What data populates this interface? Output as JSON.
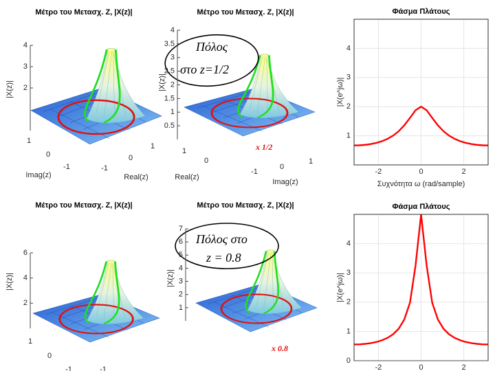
{
  "chart_data": [
    {
      "type": "surface3d",
      "title": "Μέτρο του Μετασχ. Z, |X(z)|",
      "zlabel": "|X(z)|",
      "xlabel": "Real(z)",
      "ylabel": "Imag(z)",
      "xticks": [
        -1,
        0,
        1
      ],
      "yticks": [
        1,
        0,
        -1
      ],
      "zlim": [
        0,
        4
      ],
      "zticks": [
        2,
        3,
        4
      ]
    },
    {
      "type": "surface3d",
      "title": "Μέτρο του Μετασχ. Z, |X(z)|",
      "zlabel": "|X(z)|",
      "xlabel": "Real(z)",
      "ylabel": "Imag(z)",
      "xticks": [
        1,
        0
      ],
      "yticks": [
        -1,
        0,
        1
      ],
      "zlim": [
        0,
        4
      ],
      "zticks": [
        0.5,
        1,
        1.5,
        2,
        2.5,
        3,
        3.5,
        4
      ],
      "annotations": [
        "Πόλος",
        "στο z=1/2",
        "x 1/2"
      ]
    },
    {
      "type": "line",
      "title": "Φάσμα Πλάτους",
      "xlabel": "Συχνότητα ω (rad/sample)",
      "ylabel": "|X(e^jω)|",
      "x": [
        -3.14,
        -2.88,
        -2.62,
        -2.36,
        -2.09,
        -1.83,
        -1.57,
        -1.31,
        -1.05,
        -0.79,
        -0.52,
        -0.26,
        0,
        0.26,
        0.52,
        0.79,
        1.05,
        1.31,
        1.57,
        1.83,
        2.09,
        2.36,
        2.62,
        2.88,
        3.14
      ],
      "values": [
        0.667,
        0.672,
        0.687,
        0.715,
        0.756,
        0.814,
        0.894,
        1.004,
        1.155,
        1.357,
        1.614,
        1.876,
        2,
        1.876,
        1.614,
        1.357,
        1.155,
        1.004,
        0.894,
        0.814,
        0.756,
        0.715,
        0.687,
        0.672,
        0.667
      ],
      "color": "#ff0000",
      "xlim": [
        -3.14,
        3.14
      ],
      "xticks": [
        -2,
        0,
        2
      ],
      "ylim": [
        0,
        5
      ],
      "yticks": [
        1,
        2,
        3,
        4
      ],
      "grid": true
    },
    {
      "type": "surface3d",
      "title": "Μέτρο του Μετασχ. Z, |X(z)|",
      "zlabel": "|X(z)|",
      "xticks": [
        -1
      ],
      "yticks": [
        1,
        0,
        -1
      ],
      "zlim": [
        0,
        6
      ],
      "zticks": [
        2,
        4,
        6
      ]
    },
    {
      "type": "surface3d",
      "title": "Μέτρο του Μετασχ. Z, |X(z)|",
      "zlabel": "|X(z)|",
      "xticks": [],
      "yticks": [],
      "zlim": [
        0,
        7
      ],
      "zticks": [
        1,
        2,
        3,
        4,
        5,
        6,
        7
      ],
      "annotations": [
        "Πόλος στο",
        "z = 0.8",
        "x 0.8"
      ]
    },
    {
      "type": "line",
      "title": "Φάσμα Πλάτους",
      "ylabel": "|X(e^jω)|",
      "x": [
        -3.14,
        -2.88,
        -2.62,
        -2.36,
        -2.09,
        -1.83,
        -1.57,
        -1.31,
        -1.05,
        -0.79,
        -0.52,
        -0.26,
        0,
        0.26,
        0.52,
        0.79,
        1.05,
        1.31,
        1.57,
        1.83,
        2.09,
        2.36,
        2.62,
        2.88,
        3.14
      ],
      "values": [
        0.556,
        0.56,
        0.575,
        0.601,
        0.64,
        0.698,
        0.781,
        0.903,
        1.091,
        1.402,
        1.983,
        3.251,
        5,
        3.251,
        1.983,
        1.402,
        1.091,
        0.903,
        0.781,
        0.698,
        0.64,
        0.601,
        0.575,
        0.56,
        0.556
      ],
      "color": "#ff0000",
      "xlim": [
        -3.14,
        3.14
      ],
      "xticks": [
        -2,
        0,
        2
      ],
      "ylim": [
        0,
        5
      ],
      "yticks": [
        0,
        1,
        2,
        3,
        4
      ],
      "grid": true
    }
  ]
}
